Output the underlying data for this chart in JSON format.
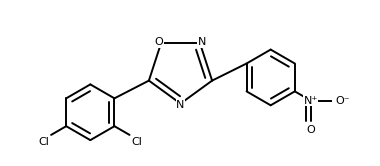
{
  "background_color": "#ffffff",
  "line_color": "#000000",
  "line_width": 1.4,
  "figsize": [
    3.8,
    1.66
  ],
  "dpi": 100,
  "font_size": 8.0,
  "ring_r": 0.105,
  "ph_r": 0.088,
  "dbo": 0.018,
  "xlim": [
    -0.42,
    0.48
  ],
  "ylim": [
    -0.3,
    0.22
  ]
}
